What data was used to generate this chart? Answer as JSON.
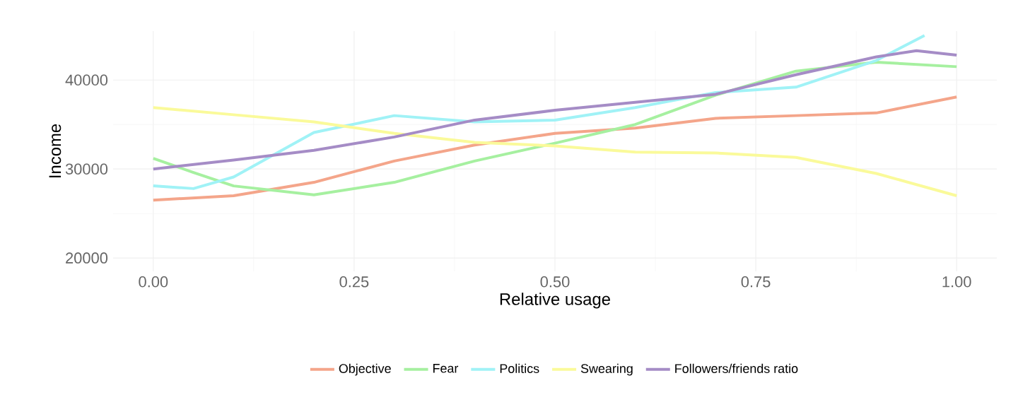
{
  "chart_data": {
    "type": "line",
    "xlabel": "Relative usage",
    "ylabel": "Income",
    "xlim": [
      -0.05,
      1.05
    ],
    "ylim": [
      18500,
      45500
    ],
    "xticks": [
      {
        "value": 0,
        "label": "0.00"
      },
      {
        "value": 0.25,
        "label": "0.25"
      },
      {
        "value": 0.5,
        "label": "0.50"
      },
      {
        "value": 0.75,
        "label": "0.75"
      },
      {
        "value": 1,
        "label": "1.00"
      }
    ],
    "yticks": [
      20000,
      30000,
      40000
    ],
    "grid": true,
    "legend": "bottom",
    "series": [
      {
        "name": "Objective",
        "color": "#f4a58a",
        "x": [
          0,
          0.1,
          0.2,
          0.3,
          0.4,
          0.5,
          0.6,
          0.7,
          0.8,
          0.9,
          1.0
        ],
        "values": [
          26500,
          27000,
          28500,
          30900,
          32700,
          34000,
          34600,
          35700,
          36000,
          36300,
          38100
        ]
      },
      {
        "name": "Fear",
        "color": "#a6f0a0",
        "x": [
          0,
          0.05,
          0.1,
          0.2,
          0.3,
          0.4,
          0.5,
          0.6,
          0.7,
          0.8,
          0.9,
          1.0
        ],
        "values": [
          31200,
          29600,
          28100,
          27100,
          28500,
          30900,
          32900,
          35000,
          38300,
          41000,
          42000,
          41500
        ]
      },
      {
        "name": "Politics",
        "color": "#a0f2f6",
        "x": [
          0,
          0.05,
          0.1,
          0.2,
          0.3,
          0.4,
          0.5,
          0.6,
          0.7,
          0.8,
          0.9,
          0.96
        ],
        "values": [
          28100,
          27800,
          29100,
          34100,
          36000,
          35300,
          35500,
          36900,
          38600,
          39200,
          42200,
          45000
        ]
      },
      {
        "name": "Swearing",
        "color": "#fafa9a",
        "x": [
          0,
          0.1,
          0.2,
          0.3,
          0.4,
          0.5,
          0.6,
          0.7,
          0.8,
          0.9,
          1.0
        ],
        "values": [
          36900,
          36100,
          35300,
          34000,
          33000,
          32600,
          31900,
          31800,
          31300,
          29500,
          27000
        ]
      },
      {
        "name": "Followers/friends ratio",
        "color": "#a58cc6",
        "x": [
          0,
          0.1,
          0.2,
          0.3,
          0.4,
          0.5,
          0.6,
          0.7,
          0.8,
          0.9,
          0.95,
          1.0
        ],
        "values": [
          30000,
          31000,
          32100,
          33600,
          35500,
          36600,
          37500,
          38400,
          40600,
          42600,
          43300,
          42800
        ]
      }
    ]
  }
}
